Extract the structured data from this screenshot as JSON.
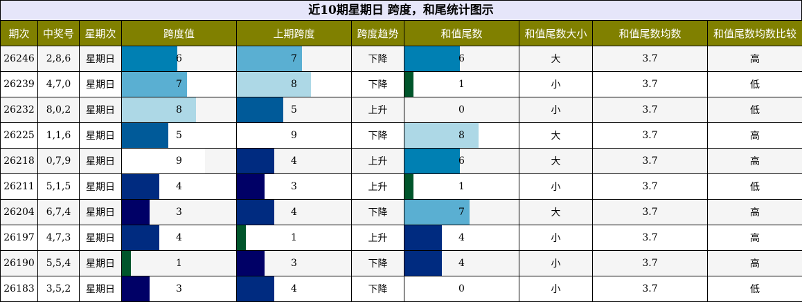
{
  "title": "近10期星期日 跨度，和尾统计图示",
  "headers": [
    "期次",
    "中奖号",
    "星期次",
    "跨度值",
    "上期跨度",
    "跨度趋势",
    "和值尾数",
    "和值尾数大小",
    "和值尾数均数",
    "和值尾数均数比较"
  ],
  "bar_colors": {
    "0": "#ffffff",
    "1": "#00552b",
    "2": "#00552b",
    "3": "#000066",
    "4": "#002b80",
    "5": "#005a99",
    "6": "#0080b3",
    "7": "#5aafd2",
    "8": "#add8e6",
    "9": "#ffffff"
  },
  "chart_data": {
    "type": "table",
    "title": "近10期星期日 跨度，和尾统计图示",
    "bar_max": 9,
    "rows": [
      {
        "issue": "26246",
        "numbers": "2,8,6",
        "weekday": "星期日",
        "span": 6,
        "prev_span": 7,
        "trend": "下降",
        "sum_tail": 6,
        "size": "大",
        "avg": "3.7",
        "compare": "高"
      },
      {
        "issue": "26239",
        "numbers": "4,7,0",
        "weekday": "星期日",
        "span": 7,
        "prev_span": 8,
        "trend": "下降",
        "sum_tail": 1,
        "size": "小",
        "avg": "3.7",
        "compare": "低"
      },
      {
        "issue": "26232",
        "numbers": "8,0,2",
        "weekday": "星期日",
        "span": 8,
        "prev_span": 5,
        "trend": "上升",
        "sum_tail": 0,
        "size": "小",
        "avg": "3.7",
        "compare": "低"
      },
      {
        "issue": "26225",
        "numbers": "1,1,6",
        "weekday": "星期日",
        "span": 5,
        "prev_span": 9,
        "trend": "下降",
        "sum_tail": 8,
        "size": "大",
        "avg": "3.7",
        "compare": "高"
      },
      {
        "issue": "26218",
        "numbers": "0,7,9",
        "weekday": "星期日",
        "span": 9,
        "prev_span": 4,
        "trend": "上升",
        "sum_tail": 6,
        "size": "大",
        "avg": "3.7",
        "compare": "高"
      },
      {
        "issue": "26211",
        "numbers": "5,1,5",
        "weekday": "星期日",
        "span": 4,
        "prev_span": 3,
        "trend": "上升",
        "sum_tail": 1,
        "size": "小",
        "avg": "3.7",
        "compare": "低"
      },
      {
        "issue": "26204",
        "numbers": "6,7,4",
        "weekday": "星期日",
        "span": 3,
        "prev_span": 4,
        "trend": "下降",
        "sum_tail": 7,
        "size": "大",
        "avg": "3.7",
        "compare": "高"
      },
      {
        "issue": "26197",
        "numbers": "4,7,3",
        "weekday": "星期日",
        "span": 4,
        "prev_span": 1,
        "trend": "上升",
        "sum_tail": 4,
        "size": "小",
        "avg": "3.7",
        "compare": "高"
      },
      {
        "issue": "26190",
        "numbers": "5,5,4",
        "weekday": "星期日",
        "span": 1,
        "prev_span": 3,
        "trend": "下降",
        "sum_tail": 4,
        "size": "小",
        "avg": "3.7",
        "compare": "高"
      },
      {
        "issue": "26183",
        "numbers": "3,5,2",
        "weekday": "星期日",
        "span": 3,
        "prev_span": 4,
        "trend": "下降",
        "sum_tail": 0,
        "size": "小",
        "avg": "3.7",
        "compare": "低"
      }
    ]
  }
}
